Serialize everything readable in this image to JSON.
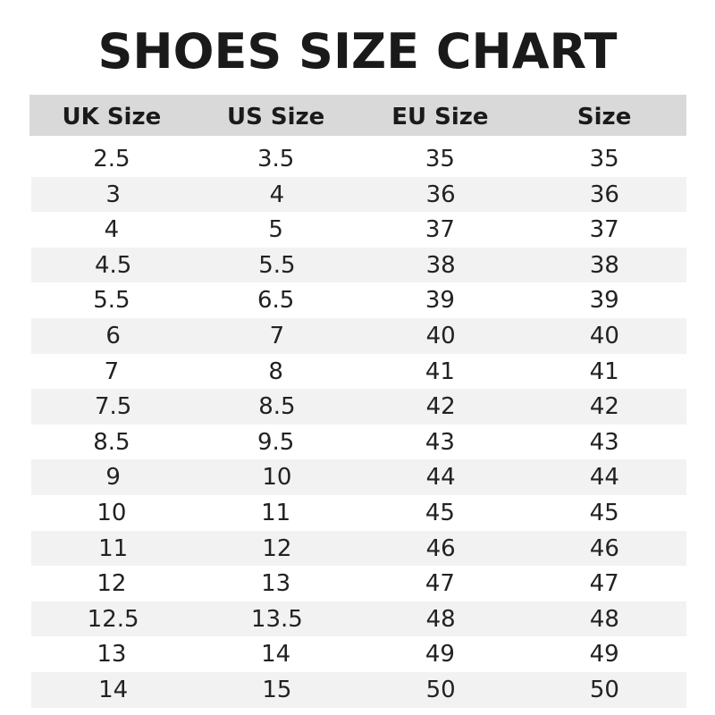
{
  "chart_data": {
    "type": "table",
    "title": "SHOES SIZE CHART",
    "columns": [
      "UK Size",
      "US Size",
      "EU Size",
      "Size"
    ],
    "rows": [
      [
        "2.5",
        "3.5",
        "35",
        "35"
      ],
      [
        "3",
        "4",
        "36",
        "36"
      ],
      [
        "4",
        "5",
        "37",
        "37"
      ],
      [
        "4.5",
        "5.5",
        "38",
        "38"
      ],
      [
        "5.5",
        "6.5",
        "39",
        "39"
      ],
      [
        "6",
        "7",
        "40",
        "40"
      ],
      [
        "7",
        "8",
        "41",
        "41"
      ],
      [
        "7.5",
        "8.5",
        "42",
        "42"
      ],
      [
        "8.5",
        "9.5",
        "43",
        "43"
      ],
      [
        "9",
        "10",
        "44",
        "44"
      ],
      [
        "10",
        "11",
        "45",
        "45"
      ],
      [
        "11",
        "12",
        "46",
        "46"
      ],
      [
        "12",
        "13",
        "47",
        "47"
      ],
      [
        "12.5",
        "13.5",
        "48",
        "48"
      ],
      [
        "13",
        "14",
        "49",
        "49"
      ],
      [
        "14",
        "15",
        "50",
        "50"
      ]
    ],
    "colors": {
      "header_bg": "#d9d9d9",
      "alt_row_bg": "#f2f2f2",
      "text": "#1a1a1a"
    }
  }
}
